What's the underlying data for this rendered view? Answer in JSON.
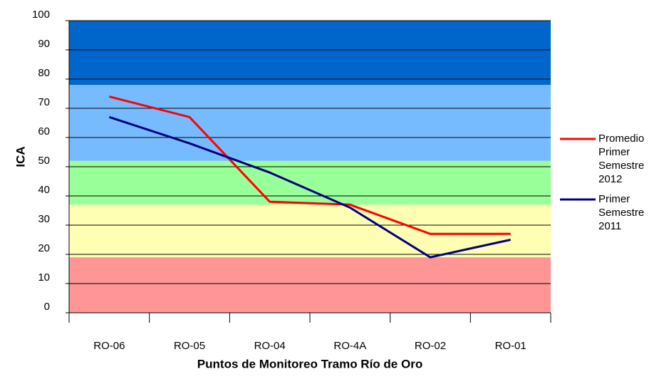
{
  "chart_data": {
    "type": "line",
    "x_label": "Puntos de Monitoreo Tramo Río de Oro",
    "y_label": "ICA",
    "categories": [
      "RO-06",
      "RO-05",
      "RO-04",
      "RO-4A",
      "RO-02",
      "RO-01"
    ],
    "series": [
      {
        "name": "Promedio Primer Semestre 2012",
        "color": "#ff0000",
        "values": [
          74,
          67,
          38,
          37,
          27,
          27
        ]
      },
      {
        "name": "Primer Semestre 2011",
        "color": "#000080",
        "values": [
          67,
          58,
          48,
          36,
          19,
          25
        ]
      }
    ],
    "ylim": [
      0,
      100
    ],
    "yticks": [
      0,
      10,
      20,
      30,
      40,
      50,
      60,
      70,
      80,
      90,
      100
    ],
    "grid": true,
    "bands": [
      {
        "from": 0,
        "to": 19,
        "color": "#ff9595"
      },
      {
        "from": 19,
        "to": 37,
        "color": "#ffffb3"
      },
      {
        "from": 37,
        "to": 52,
        "color": "#99ff99"
      },
      {
        "from": 52,
        "to": 78,
        "color": "#77bbff"
      },
      {
        "from": 78,
        "to": 100,
        "color": "#0066cc"
      }
    ],
    "legend": "right"
  }
}
